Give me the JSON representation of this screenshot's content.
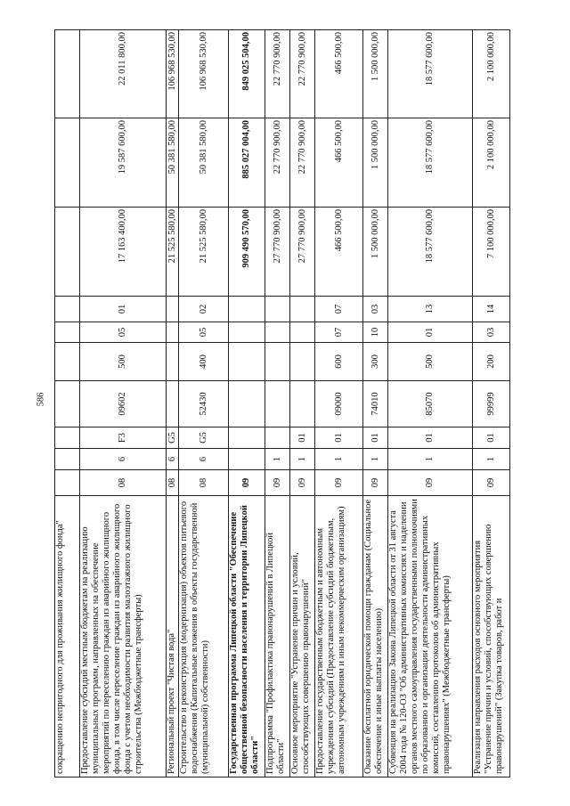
{
  "page_number": "586",
  "rows": [
    {
      "desc": "сокращению непригодного для проживания жилищного фонда\"",
      "gp": "",
      "d": "",
      "sub": "",
      "code": "",
      "vr": "",
      "rz": "",
      "pr": "",
      "v1": "",
      "v2": "",
      "v3": "",
      "bold": false
    },
    {
      "desc": "Предоставление субсидий местным бюджетам на реализацию муниципальных программ, направленных на обеспечение мероприятий по переселению граждан из аварийного жилищного фонда, в том числе переселение граждан из аварийного жилищного фонда с учетом необходимости развития малоэтажного жилищного строительства (Межбюджетные трансферты)",
      "gp": "08",
      "d": "6",
      "sub": "F3",
      "code": "09602",
      "vr": "500",
      "rz": "05",
      "pr": "01",
      "v1": "17 163 400,00",
      "v2": "19 587 600,00",
      "v3": "22 011 800,00",
      "bold": false
    },
    {
      "desc": "Региональный проект \"Чистая вода\"",
      "gp": "08",
      "d": "6",
      "sub": "G5",
      "code": "",
      "vr": "",
      "rz": "",
      "pr": "",
      "v1": "21 525 580,00",
      "v2": "50 381 580,00",
      "v3": "106 968 530,00",
      "bold": false
    },
    {
      "desc": "Строительство и реконструкция (модернизация) объектов питьевого водоснабжения (Капитальные вложения в объекты государственной (муниципальной) собственности)",
      "gp": "08",
      "d": "6",
      "sub": "G5",
      "code": "52430",
      "vr": "400",
      "rz": "05",
      "pr": "02",
      "v1": "21 525 580,00",
      "v2": "50 381 580,00",
      "v3": "106 968 530,00",
      "bold": false
    },
    {
      "desc": "Государственная программа Липецкой области \"Обеспечение общественной безопасности населения и территории Липецкой области\"",
      "gp": "09",
      "d": "",
      "sub": "",
      "code": "",
      "vr": "",
      "rz": "",
      "pr": "",
      "v1": "909 490 570,00",
      "v2": "885 027 004,00",
      "v3": "849 025 504,00",
      "bold": true
    },
    {
      "desc": "Подпрограмма \"Профилактика правонарушений в Липецкой области\"",
      "gp": "09",
      "d": "1",
      "sub": "",
      "code": "",
      "vr": "",
      "rz": "",
      "pr": "",
      "v1": "27 770 900,00",
      "v2": "22 770 900,00",
      "v3": "22 770 900,00",
      "bold": false
    },
    {
      "desc": "Основное мероприятие \"Устранение причин и условий, способствующих совершению правонарушений\"",
      "gp": "09",
      "d": "1",
      "sub": "01",
      "code": "",
      "vr": "",
      "rz": "",
      "pr": "",
      "v1": "27 770 900,00",
      "v2": "22 770 900,00",
      "v3": "22 770 900,00",
      "bold": false
    },
    {
      "desc": "Предоставление государственным бюджетным и автономным учреждениям субсидий (Предоставление субсидий бюджетным, автономным учреждениям и иным некоммерческим организациям)",
      "gp": "09",
      "d": "1",
      "sub": "01",
      "code": "09000",
      "vr": "600",
      "rz": "07",
      "pr": "07",
      "v1": "466 500,00",
      "v2": "466 500,00",
      "v3": "466 500,00",
      "bold": false
    },
    {
      "desc": "Оказание бесплатной юридической помощи гражданам (Социальное обеспечение и иные выплаты населению)",
      "gp": "09",
      "d": "1",
      "sub": "01",
      "code": "74010",
      "vr": "300",
      "rz": "10",
      "pr": "03",
      "v1": "1 500 000,00",
      "v2": "1 500 000,00",
      "v3": "1 500 000,00",
      "bold": false
    },
    {
      "desc": "Субвенция на реализацию Закона Липецкой области от 31 августа 2004 года № 120-ОЗ \"Об административных комиссиях и наделении органов местного самоуправления государственными полномочиями по образованию и организации деятельности административных комиссий, составлению протоколов об административных правонарушениях\" (Межбюджетные трансферты)",
      "gp": "09",
      "d": "1",
      "sub": "01",
      "code": "85070",
      "vr": "500",
      "rz": "01",
      "pr": "13",
      "v1": "18 577 600,00",
      "v2": "18 577 600,00",
      "v3": "18 577 600,00",
      "bold": false
    },
    {
      "desc": "Реализация направления расходов основного мероприятия \"Устранение причин и условий, способствующих совершению правонарушений\" (Закупка товаров, работ и",
      "gp": "09",
      "d": "1",
      "sub": "01",
      "code": "99999",
      "vr": "200",
      "rz": "03",
      "pr": "14",
      "v1": "7 100 000,00",
      "v2": "2 100 000,00",
      "v3": "2 100 000,00",
      "bold": false
    }
  ]
}
